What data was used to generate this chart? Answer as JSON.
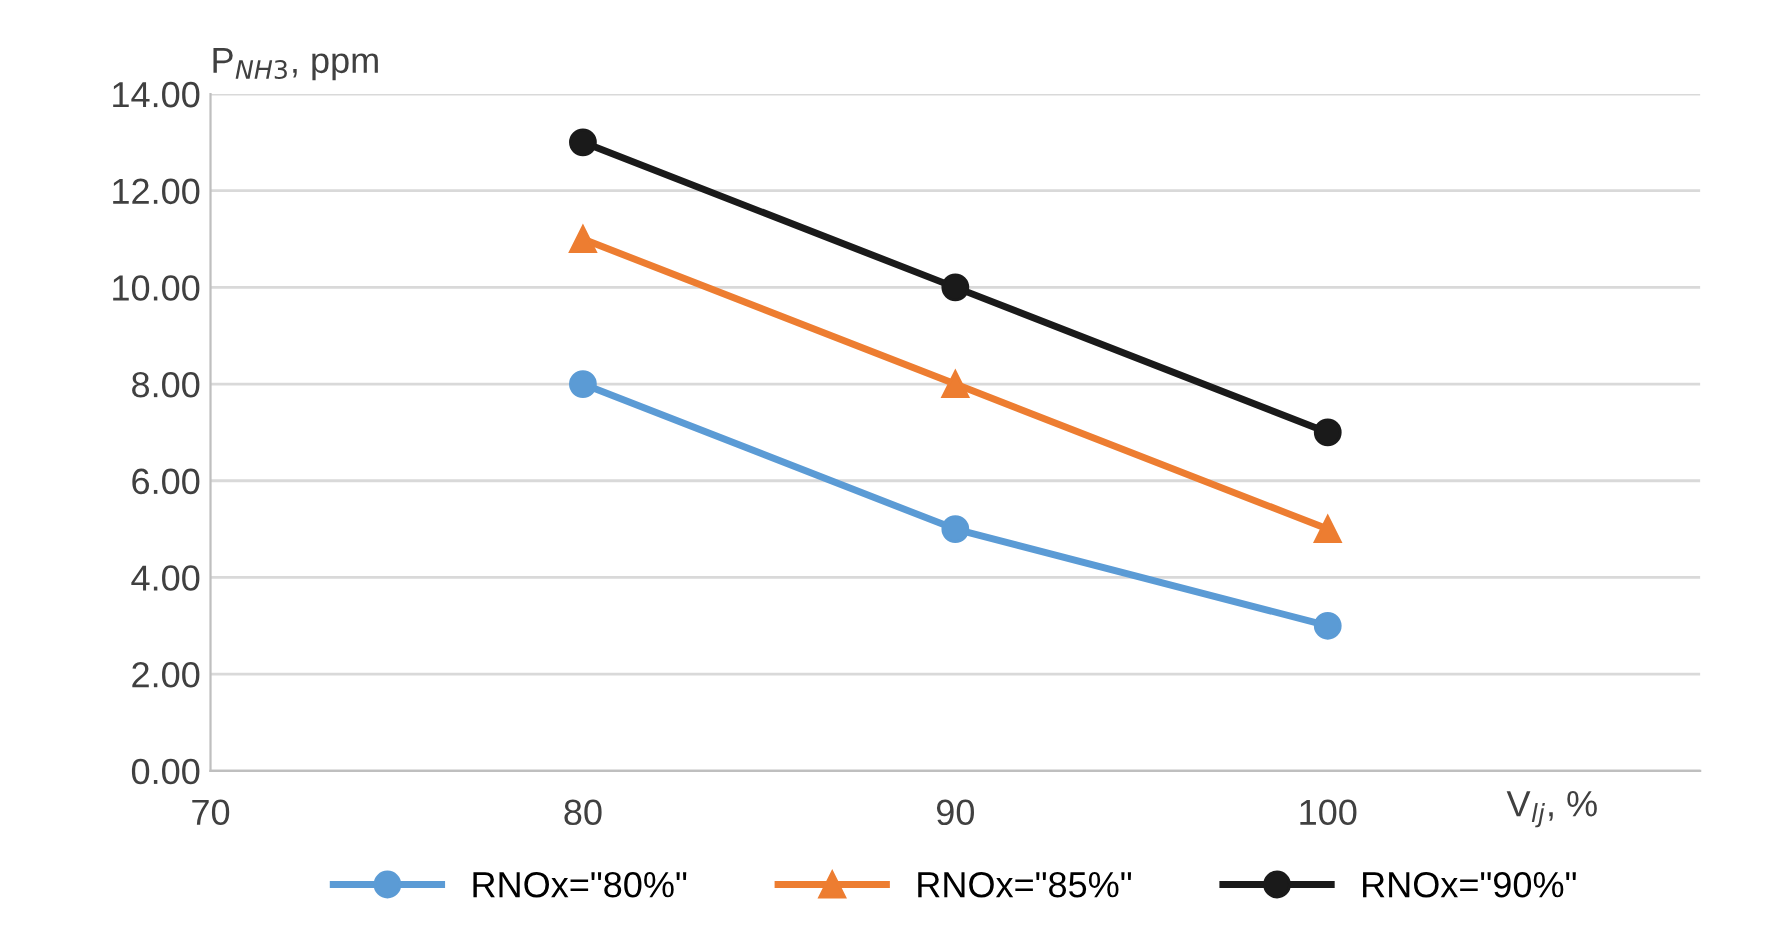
{
  "chart_data": {
    "type": "line",
    "xlabel": "V$_{lj}$, %",
    "ylabel": "P$_{NH3}$, ppm",
    "x": [
      80,
      90,
      100
    ],
    "series": [
      {
        "name": "RNOx=\"80%\"",
        "color": "#5b9bd5",
        "marker": "circle",
        "values": [
          8,
          5,
          3
        ]
      },
      {
        "name": "RNOx=\"85%\"",
        "color": "#ed7d31",
        "marker": "triangle",
        "values": [
          11,
          8,
          5
        ]
      },
      {
        "name": "RNOx=\"90%\"",
        "color": "#1a1a1a",
        "marker": "circle",
        "values": [
          13,
          10,
          7
        ]
      }
    ],
    "xlim": [
      70,
      110
    ],
    "xticks": [
      70,
      80,
      90,
      100
    ],
    "ylim": [
      0,
      14
    ],
    "yticks": [
      {
        "value": 0,
        "label": "0.00"
      },
      {
        "value": 2,
        "label": "2.00"
      },
      {
        "value": 4,
        "label": "4.00"
      },
      {
        "value": 6,
        "label": "6.00"
      },
      {
        "value": 8,
        "label": "8.00"
      },
      {
        "value": 10,
        "label": "10.00"
      },
      {
        "value": 12,
        "label": "12.00"
      },
      {
        "value": 14,
        "label": "14.00"
      }
    ],
    "grid": "y",
    "legend": "bottom"
  }
}
